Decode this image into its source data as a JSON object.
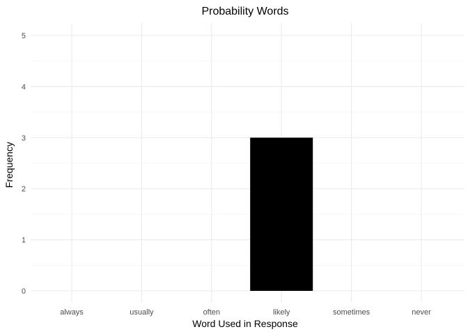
{
  "chart_data": {
    "type": "bar",
    "title": "Probability Words",
    "xlabel": "Word Used in Response",
    "ylabel": "Frequency",
    "categories": [
      "always",
      "usually",
      "often",
      "likely",
      "sometimes",
      "never"
    ],
    "values": [
      0,
      0,
      0,
      3,
      0,
      0
    ],
    "ylim": [
      0,
      5
    ],
    "yticks": [
      0,
      1,
      2,
      3,
      4,
      5
    ],
    "bar_color": "#000000",
    "grid": true,
    "legend": "none"
  }
}
